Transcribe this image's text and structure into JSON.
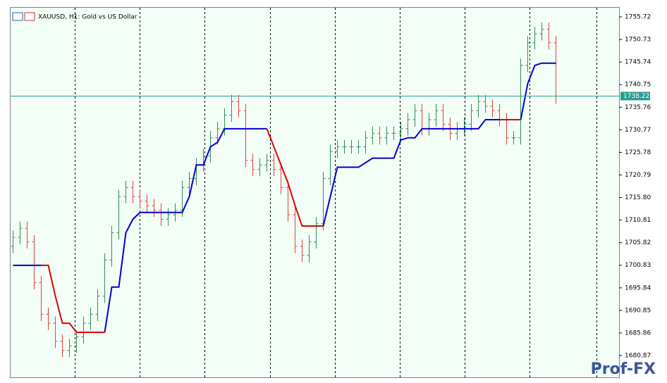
{
  "chart_data": {
    "type": "ohlc",
    "title": "XAUUSD, H1:  Gold vs US Dollar",
    "ylim": [
      1676.2,
      1757.59
    ],
    "yticks": [
      1755.72,
      1750.73,
      1745.74,
      1740.75,
      1735.76,
      1730.77,
      1725.78,
      1720.79,
      {
        "value": 1715.8,
        "label": "1715.80"
      },
      1710.81,
      1705.82,
      1700.83,
      1695.84,
      1690.85,
      1685.86,
      1680.87
    ],
    "up_color": "#2e8b57",
    "down_color": "#e0443a",
    "open": [
      1705,
      1707,
      1709,
      1706,
      1697,
      1690,
      1688,
      1684,
      1682,
      1683,
      1685,
      1688,
      1690,
      1694,
      1702,
      1708,
      1716,
      1718,
      1716,
      1715,
      1714,
      1713,
      1711,
      1712,
      1713,
      1718,
      1720,
      1723,
      1725,
      1729,
      1731,
      1734,
      1737,
      1735,
      1724,
      1722,
      1723,
      1724,
      1722,
      1718,
      1712,
      1705,
      1703,
      1706,
      1710,
      1720,
      1726,
      1727,
      1727,
      1727,
      1727,
      1729,
      1730,
      1729,
      1730,
      1730,
      1731,
      1733,
      1735,
      1731,
      1733,
      1735,
      1732,
      1730,
      1731,
      1732,
      1735,
      1737,
      1736,
      1735,
      1733,
      1729,
      1729,
      1745,
      1750,
      1752,
      1753,
      1750
    ],
    "high": [
      1708.5,
      1710.5,
      1710.5,
      1707.5,
      1698.5,
      1691.5,
      1689.5,
      1685.5,
      1684.5,
      1686.5,
      1689.5,
      1691.5,
      1695.5,
      1703.5,
      1709.5,
      1717.5,
      1719.5,
      1719.5,
      1717.5,
      1716.5,
      1715.5,
      1714.5,
      1713.5,
      1714.5,
      1719.5,
      1721.5,
      1724.5,
      1726.5,
      1730.5,
      1732.5,
      1735.5,
      1738.5,
      1738.5,
      1736.5,
      1725.5,
      1724.5,
      1725.5,
      1725.5,
      1723.5,
      1719.5,
      1713.5,
      1706.5,
      1707.5,
      1711.5,
      1721.5,
      1727.5,
      1728.5,
      1728.5,
      1728.5,
      1728.5,
      1730.5,
      1731.5,
      1731.5,
      1731.5,
      1731.5,
      1732.5,
      1734.5,
      1736.5,
      1736.5,
      1734.5,
      1736.5,
      1736.5,
      1733.5,
      1732.5,
      1733.5,
      1736.5,
      1738.5,
      1738.5,
      1737.5,
      1736.5,
      1734.5,
      1730.5,
      1746.5,
      1751.5,
      1753.5,
      1754.5,
      1754.5,
      1751.5
    ],
    "low": [
      1703.5,
      1705.5,
      1704.5,
      1695.5,
      1688.5,
      1686.5,
      1682.5,
      1680.5,
      1680.5,
      1681.5,
      1683.5,
      1686.5,
      1688.5,
      1692.5,
      1700.5,
      1706.5,
      1714.5,
      1714.5,
      1713.5,
      1712.5,
      1711.5,
      1709.5,
      1709.5,
      1710.5,
      1711.5,
      1716.5,
      1718.5,
      1721.5,
      1723.5,
      1727.5,
      1729.5,
      1732.5,
      1733.5,
      1722.5,
      1720.5,
      1720.5,
      1721.5,
      1720.5,
      1716.5,
      1710.5,
      1703.5,
      1701.5,
      1701.5,
      1704.5,
      1708.5,
      1718.5,
      1724.5,
      1725.5,
      1725.5,
      1725.5,
      1725.5,
      1727.5,
      1727.5,
      1727.5,
      1728.5,
      1728.5,
      1729.5,
      1731.5,
      1729.5,
      1729.5,
      1731.5,
      1730.5,
      1728.5,
      1728.5,
      1729.5,
      1730.5,
      1733.5,
      1734.5,
      1733.5,
      1731.5,
      1727.5,
      1727.5,
      1727.5,
      1743.5,
      1748.5,
      1750.5,
      1748.5,
      1736.5
    ],
    "close": [
      1707,
      1709,
      1706,
      1697,
      1690,
      1688,
      1684,
      1682,
      1683,
      1685,
      1688,
      1690,
      1694,
      1702,
      1708,
      1716,
      1718,
      1716,
      1715,
      1714,
      1713,
      1711,
      1712,
      1713,
      1718,
      1720,
      1723,
      1725,
      1729,
      1731,
      1734,
      1737,
      1735,
      1724,
      1722,
      1723,
      1724,
      1722,
      1718,
      1712,
      1705,
      1703,
      1706,
      1710,
      1720,
      1726,
      1727,
      1727,
      1727,
      1727,
      1729,
      1730,
      1729,
      1730,
      1730,
      1731,
      1733,
      1735,
      1731,
      1733,
      1735,
      1732,
      1730,
      1731,
      1732,
      1735,
      1737,
      1736,
      1735,
      1733,
      1729,
      1729,
      1745,
      1750,
      1752,
      1753,
      1750,
      1738.22
    ],
    "lines": [
      {
        "color": "#0000cc",
        "values": [
          1700.8,
          1700.8,
          1700.8,
          1700.8,
          1700.8,
          null,
          null,
          null,
          null,
          null,
          null,
          null,
          null,
          1686,
          1696,
          1696,
          1708,
          1711,
          1712.5,
          1712.5,
          1712.5,
          1712.5,
          1712.5,
          1712.5,
          1712.5,
          1716,
          1723,
          1723,
          1727,
          1728,
          1731,
          1731,
          1731,
          1731,
          1731,
          1731,
          1731,
          null,
          null,
          null,
          null,
          null,
          null,
          null,
          1709.5,
          1716,
          1722.5,
          1722.5,
          1722.5,
          1722.5,
          1723.5,
          1724.5,
          1724.5,
          1724.5,
          1724.5,
          1728.5,
          1729,
          1729,
          1731,
          1731,
          1731,
          1731,
          1731,
          1731,
          1731,
          1731,
          1731,
          1733,
          1733,
          1733,
          null,
          null,
          1733,
          1741,
          1745,
          1745.5,
          1745.5,
          1745.5
        ]
      },
      {
        "color": "#e00000",
        "values": [
          null,
          null,
          null,
          null,
          1700.8,
          1700.8,
          1694,
          1688,
          1688,
          1686,
          1686,
          1686,
          1686,
          1686,
          null,
          null,
          null,
          null,
          null,
          null,
          null,
          null,
          null,
          null,
          null,
          null,
          null,
          null,
          null,
          null,
          null,
          null,
          null,
          null,
          null,
          null,
          1731,
          1727,
          1723,
          1719,
          1714,
          1709.5,
          1709.5,
          1709.5,
          1709.5,
          null,
          null,
          null,
          null,
          null,
          null,
          null,
          null,
          null,
          null,
          null,
          null,
          null,
          null,
          null,
          null,
          null,
          null,
          null,
          null,
          null,
          null,
          null,
          null,
          1733,
          1733,
          1733,
          1733,
          null,
          null,
          null,
          null,
          null
        ]
      }
    ],
    "price": 1738.22,
    "price_color": "#2a9d8f",
    "watermark": "Prof-FX"
  }
}
